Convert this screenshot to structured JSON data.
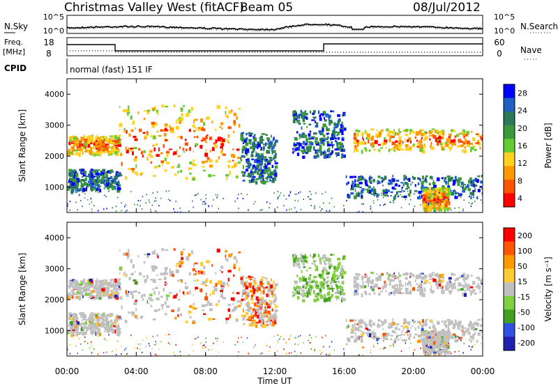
{
  "header": {
    "station": "Christmas Valley West (fitACF)",
    "beam": "Beam 05",
    "date": "08/Jul/2012"
  },
  "noise_panel": {
    "left_label": "N.Sky",
    "right_label": "N.Search",
    "ticks_left": [
      "10^5",
      "10^0"
    ],
    "ticks_right": [
      "10^5",
      "10^0"
    ]
  },
  "freq_panel": {
    "left_label_line1": "Freq.",
    "left_label_line2": "[MHz]",
    "right_label": "Nave",
    "ticks_left": [
      "18",
      "8"
    ],
    "ticks_right": [
      "60",
      "0"
    ]
  },
  "cpid": {
    "label": "CPID",
    "value": "normal (fast) 151 IF"
  },
  "colors": {
    "power": [
      "#0000ff",
      "#2060c0",
      "#2a7a5a",
      "#3a9a3a",
      "#66cc33",
      "#ffd21e",
      "#ff9900",
      "#ff5500",
      "#ff0000"
    ],
    "velocity": [
      "#2020b0",
      "#3050e0",
      "#40a020",
      "#80d040",
      "#c0c0c0",
      "#ffcc33",
      "#ff9900",
      "#ff5500",
      "#ff0000"
    ],
    "data_blue": "#1840c8"
  },
  "chart_data": [
    {
      "type": "heatmap",
      "name": "power",
      "ylabel": "Slant Range [km]",
      "yticks": [
        "4000",
        "3000",
        "2000",
        "1000"
      ],
      "ylim": [
        180,
        4500
      ],
      "colorbar_label": "Power [dB]",
      "colorbar_ticks": [
        "28",
        "24",
        "20",
        "16",
        "12",
        "8",
        "4"
      ],
      "colorbar_range": [
        0,
        32
      ],
      "bands": [
        {
          "x": [
            0.0,
            3.0
          ],
          "y": [
            2100,
            2700
          ],
          "level": "high"
        },
        {
          "x": [
            3.0,
            10.0
          ],
          "y": [
            1300,
            3700
          ],
          "level": "high"
        },
        {
          "x": [
            0.0,
            3.0
          ],
          "y": [
            900,
            1600
          ],
          "level": "low"
        },
        {
          "x": [
            10.0,
            12.0
          ],
          "y": [
            1200,
            2800
          ],
          "level": "low"
        },
        {
          "x": [
            13.0,
            16.0
          ],
          "y": [
            2000,
            3500
          ],
          "level": "low"
        },
        {
          "x": [
            16.5,
            24.0
          ],
          "y": [
            2200,
            2900
          ],
          "level": "high"
        },
        {
          "x": [
            16.0,
            24.0
          ],
          "y": [
            700,
            1400
          ],
          "level": "low"
        },
        {
          "x": [
            20.5,
            22.0
          ],
          "y": [
            300,
            1000
          ],
          "level": "high"
        }
      ]
    },
    {
      "type": "heatmap",
      "name": "velocity",
      "ylabel": "Slant Range [km]",
      "yticks": [
        "4000",
        "3000",
        "2000",
        "1000"
      ],
      "ylim": [
        180,
        4500
      ],
      "colorbar_label": "Velocity [m s⁻¹]",
      "colorbar_ticks": [
        "200",
        "100",
        "50",
        "15",
        "-15",
        "-50",
        "-100",
        "-200"
      ],
      "colorbar_range": [
        -250,
        250
      ]
    }
  ],
  "x_axis": {
    "label": "Time UT",
    "ticks": [
      "00:00",
      "04:00",
      "08:00",
      "12:00",
      "16:00",
      "20:00",
      "00:00"
    ],
    "range_hours": [
      0,
      24
    ]
  }
}
